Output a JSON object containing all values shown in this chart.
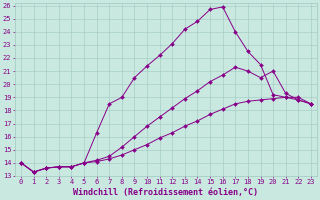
{
  "xlabel": "Windchill (Refroidissement éolien,°C)",
  "xlim": [
    -0.5,
    23.5
  ],
  "ylim": [
    13,
    26.2
  ],
  "xticks": [
    0,
    1,
    2,
    3,
    4,
    5,
    6,
    7,
    8,
    9,
    10,
    11,
    12,
    13,
    14,
    15,
    16,
    17,
    18,
    19,
    20,
    21,
    22,
    23
  ],
  "yticks": [
    13,
    14,
    15,
    16,
    17,
    18,
    19,
    20,
    21,
    22,
    23,
    24,
    25,
    26
  ],
  "bg_color": "#c8e8e0",
  "grid_color": "#a0c8c0",
  "line_color": "#880088",
  "lines": [
    {
      "x": [
        0,
        1,
        2,
        3,
        4,
        5,
        6,
        7,
        8,
        9,
        10,
        11,
        12,
        13,
        14,
        15,
        16,
        17,
        18,
        19,
        20,
        21,
        22,
        23
      ],
      "y": [
        14.0,
        13.3,
        13.6,
        13.7,
        13.7,
        14.0,
        16.3,
        18.5,
        19.0,
        20.5,
        21.4,
        22.2,
        23.1,
        24.2,
        24.8,
        25.7,
        25.9,
        24.0,
        22.5,
        21.5,
        19.2,
        19.0,
        18.8,
        18.5
      ]
    },
    {
      "x": [
        0,
        1,
        2,
        3,
        4,
        5,
        6,
        7,
        8,
        9,
        10,
        11,
        12,
        13,
        14,
        15,
        16,
        17,
        18,
        19,
        20,
        21,
        22,
        23
      ],
      "y": [
        14.0,
        13.3,
        13.6,
        13.7,
        13.7,
        14.0,
        14.2,
        14.5,
        15.2,
        16.0,
        16.8,
        17.5,
        18.2,
        18.9,
        19.5,
        20.2,
        20.7,
        21.3,
        21.0,
        20.5,
        21.0,
        19.3,
        18.8,
        18.5
      ]
    },
    {
      "x": [
        0,
        1,
        2,
        3,
        4,
        5,
        6,
        7,
        8,
        9,
        10,
        11,
        12,
        13,
        14,
        15,
        16,
        17,
        18,
        19,
        20,
        21,
        22,
        23
      ],
      "y": [
        14.0,
        13.3,
        13.6,
        13.7,
        13.7,
        14.0,
        14.1,
        14.3,
        14.6,
        15.0,
        15.4,
        15.9,
        16.3,
        16.8,
        17.2,
        17.7,
        18.1,
        18.5,
        18.7,
        18.8,
        18.9,
        19.0,
        19.0,
        18.5
      ]
    }
  ],
  "tick_fontsize": 5.0,
  "label_fontsize": 6.0,
  "marker_size": 2.0,
  "linewidth": 0.7
}
